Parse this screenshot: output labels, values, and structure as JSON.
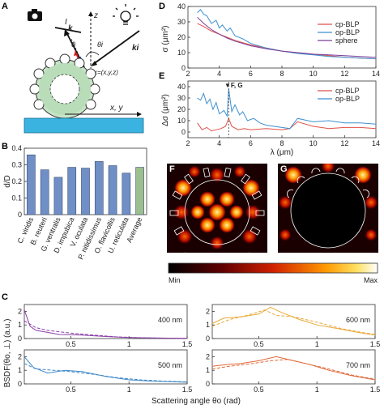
{
  "panels": {
    "A": {
      "label": "A",
      "labels": {
        "I": "I",
        "k": "k",
        "theta_minus": "θ",
        "z": "z",
        "theta_i": "θi",
        "k_i": "ki",
        "x": "x=(x,y,z)",
        "xy": "x, y"
      },
      "icons": [
        "camera-icon",
        "light-bulb-icon"
      ]
    },
    "B": {
      "label": "B",
      "ylabel": "d/D",
      "chart_data": {
        "type": "bar",
        "categories": [
          "C. viridis",
          "B. reuteri",
          "G. ventralis",
          "D. impubica",
          "V. oculata",
          "P. nitidissimus",
          "O. flavicollis",
          "U. reticulata",
          "Average"
        ],
        "values": [
          0.36,
          0.27,
          0.225,
          0.285,
          0.28,
          0.32,
          0.295,
          0.25,
          0.285
        ],
        "ylim": [
          0,
          0.4
        ],
        "yticks": [
          "0",
          "0.1",
          "0.2",
          "0.3",
          "0.4"
        ],
        "colors": [
          "#6f8fc6",
          "#6f8fc6",
          "#6f8fc6",
          "#6f8fc6",
          "#6f8fc6",
          "#6f8fc6",
          "#6f8fc6",
          "#6f8fc6",
          "#9bbf8f"
        ]
      }
    },
    "C": {
      "label": "C",
      "ylabel": "BSDF(θo, ⊥) (a.u.)",
      "xlabel": "Scattering angle θo (rad)",
      "subplots": [
        {
          "title": "400 nm",
          "color": "#8a3fa8",
          "xticks": [
            "0.5",
            "1",
            "1.5"
          ],
          "yticks": [
            "0",
            "1",
            "2"
          ],
          "xlim": [
            0.1,
            1.5
          ],
          "ylim": [
            0,
            2.5
          ],
          "solid": [
            [
              0.1,
              2.1
            ],
            [
              0.15,
              0.9
            ],
            [
              0.2,
              0.6
            ],
            [
              0.3,
              0.45
            ],
            [
              0.4,
              0.3
            ],
            [
              0.5,
              0.28
            ],
            [
              0.6,
              0.25
            ],
            [
              0.8,
              0.15
            ],
            [
              1.0,
              0.08
            ],
            [
              1.2,
              0.04
            ],
            [
              1.5,
              0.02
            ]
          ],
          "dashed": [
            [
              0.1,
              1.3
            ],
            [
              0.2,
              0.8
            ],
            [
              0.3,
              0.6
            ],
            [
              0.5,
              0.4
            ],
            [
              0.7,
              0.25
            ],
            [
              0.9,
              0.12
            ],
            [
              1.1,
              0.06
            ],
            [
              1.3,
              0.03
            ],
            [
              1.5,
              0.02
            ]
          ]
        },
        {
          "title": "600 nm",
          "color": "#e8a93a",
          "xticks": [
            "0.5",
            "1",
            "1.5"
          ],
          "yticks": [
            "0",
            "1",
            "2"
          ],
          "xlim": [
            0.1,
            1.5
          ],
          "ylim": [
            0,
            2.5
          ],
          "solid": [
            [
              0.1,
              1.1
            ],
            [
              0.2,
              1.5
            ],
            [
              0.35,
              1.6
            ],
            [
              0.5,
              1.8
            ],
            [
              0.6,
              2.3
            ],
            [
              0.7,
              1.9
            ],
            [
              0.85,
              1.4
            ],
            [
              1.0,
              1.0
            ],
            [
              1.2,
              0.7
            ],
            [
              1.35,
              0.45
            ],
            [
              1.5,
              0.25
            ]
          ],
          "dashed": [
            [
              0.1,
              0.9
            ],
            [
              0.25,
              1.4
            ],
            [
              0.4,
              1.7
            ],
            [
              0.55,
              2.1
            ],
            [
              0.65,
              1.7
            ],
            [
              0.8,
              1.6
            ],
            [
              1.0,
              1.2
            ],
            [
              1.2,
              0.75
            ],
            [
              1.35,
              0.5
            ],
            [
              1.5,
              0.3
            ]
          ]
        },
        {
          "title": "500 nm",
          "color": "#3f8ac8",
          "xticks": [
            "0.5",
            "1",
            "1.5"
          ],
          "yticks": [
            "0",
            "1",
            "2"
          ],
          "xlim": [
            0.1,
            1.5
          ],
          "ylim": [
            0,
            2.5
          ],
          "solid": [
            [
              0.1,
              2.0
            ],
            [
              0.18,
              1.2
            ],
            [
              0.3,
              0.8
            ],
            [
              0.45,
              1.0
            ],
            [
              0.6,
              0.9
            ],
            [
              0.8,
              0.55
            ],
            [
              1.0,
              0.3
            ],
            [
              1.2,
              0.2
            ],
            [
              1.4,
              0.15
            ],
            [
              1.5,
              0.12
            ]
          ],
          "dashed": [
            [
              0.1,
              1.5
            ],
            [
              0.2,
              1.1
            ],
            [
              0.35,
              1.0
            ],
            [
              0.5,
              0.9
            ],
            [
              0.7,
              0.7
            ],
            [
              0.9,
              0.45
            ],
            [
              1.1,
              0.3
            ],
            [
              1.3,
              0.2
            ],
            [
              1.5,
              0.15
            ]
          ]
        },
        {
          "title": "700 nm",
          "color": "#e06a3a",
          "xticks": [
            "0.5",
            "1",
            "1.5"
          ],
          "yticks": [
            "0",
            "1",
            "2"
          ],
          "xlim": [
            0.1,
            1.5
          ],
          "ylim": [
            0,
            2.5
          ],
          "solid": [
            [
              0.1,
              1.3
            ],
            [
              0.2,
              1.4
            ],
            [
              0.35,
              1.5
            ],
            [
              0.5,
              1.7
            ],
            [
              0.65,
              2.0
            ],
            [
              0.8,
              1.7
            ],
            [
              0.95,
              1.4
            ],
            [
              1.1,
              1.0
            ],
            [
              1.3,
              0.6
            ],
            [
              1.5,
              0.3
            ]
          ],
          "dashed": [
            [
              0.1,
              1.1
            ],
            [
              0.25,
              1.3
            ],
            [
              0.45,
              1.5
            ],
            [
              0.6,
              1.7
            ],
            [
              0.75,
              1.8
            ],
            [
              0.9,
              1.5
            ],
            [
              1.1,
              1.1
            ],
            [
              1.3,
              0.65
            ],
            [
              1.5,
              0.35
            ]
          ]
        }
      ]
    },
    "D": {
      "label": "D",
      "ylabel": "σ (μm²)",
      "chart_data": {
        "type": "line",
        "ylim": [
          0,
          40
        ],
        "xlim": [
          2,
          14
        ],
        "yticks": [
          "0",
          "10",
          "20",
          "30",
          "40"
        ],
        "xticks": [
          "2",
          "4",
          "6",
          "8",
          "10",
          "12",
          "14"
        ],
        "series": [
          {
            "name": "cp-BLP",
            "color": "#e0504a",
            "x": [
              2.6,
              3,
              3.5,
              4,
              4.5,
              5,
              6,
              7,
              8,
              9,
              10,
              11,
              12,
              13,
              14
            ],
            "y": [
              29,
              27,
              24,
              22,
              20,
              18,
              15,
              13,
              11,
              10,
              9,
              8,
              7,
              6.5,
              6
            ]
          },
          {
            "name": "op-BLP",
            "color": "#3d8fd0",
            "x": [
              2.6,
              2.8,
              3.0,
              3.2,
              3.5,
              3.8,
              4.0,
              4.2,
              4.5,
              4.7,
              5.0,
              5.5,
              6,
              7,
              8,
              9,
              10,
              11,
              12,
              13,
              14
            ],
            "y": [
              36,
              38,
              35,
              34,
              29,
              31,
              26,
              28,
              24,
              26,
              21,
              19,
              16,
              13,
              11,
              9.5,
              8.5,
              7.5,
              7,
              6.5,
              6
            ]
          },
          {
            "name": "sphere",
            "color": "#7b3f9a",
            "x": [
              2.6,
              3,
              3.5,
              4,
              4.5,
              5,
              6,
              7,
              8,
              9,
              10,
              11,
              12,
              13,
              14
            ],
            "y": [
              33,
              29,
              25,
              22,
              19.5,
              17.5,
              14.5,
              12.5,
              11,
              10,
              9,
              8.5,
              8,
              7.5,
              7
            ]
          }
        ]
      }
    },
    "E": {
      "label": "E",
      "ylabel": "Δσ (μm²)",
      "xlabel": "λ (μm)",
      "marker_label": "▼F, G",
      "chart_data": {
        "type": "line",
        "ylim": [
          -5,
          45
        ],
        "xlim": [
          2,
          14
        ],
        "yticks": [
          "0",
          "10",
          "20",
          "30",
          "40"
        ],
        "xticks": [
          "2",
          "4",
          "6",
          "8",
          "10",
          "12",
          "14"
        ],
        "marker_x": 4.6,
        "series": [
          {
            "name": "cp-BLP",
            "color": "#e0504a",
            "x": [
              2.6,
              2.9,
              3.2,
              3.5,
              3.8,
              4.1,
              4.4,
              4.6,
              4.8,
              5.2,
              5.6,
              6,
              7,
              8,
              8.5,
              9,
              10,
              11,
              12,
              13,
              14
            ],
            "y": [
              8,
              2,
              4,
              1,
              2,
              3,
              5,
              12,
              5,
              2,
              3,
              2,
              3,
              2,
              3,
              9,
              5,
              3,
              4,
              4,
              3
            ]
          },
          {
            "name": "op-BLP",
            "color": "#3d8fd0",
            "x": [
              2.6,
              2.8,
              3.0,
              3.2,
              3.4,
              3.6,
              3.8,
              4.0,
              4.3,
              4.5,
              4.6,
              4.8,
              5.0,
              5.3,
              5.5,
              5.8,
              6.2,
              6.6,
              7,
              8,
              8.5,
              9,
              10,
              11,
              12,
              13,
              14
            ],
            "y": [
              30,
              28,
              34,
              25,
              29,
              20,
              26,
              16,
              19,
              14,
              38,
              18,
              24,
              15,
              18,
              10,
              12,
              8,
              6,
              4,
              3,
              12,
              9,
              10,
              8,
              8,
              7
            ]
          }
        ]
      }
    },
    "F": {
      "label": "F"
    },
    "G": {
      "label": "G"
    },
    "colorbar": {
      "min_label": "Min",
      "max_label": "Max"
    }
  }
}
